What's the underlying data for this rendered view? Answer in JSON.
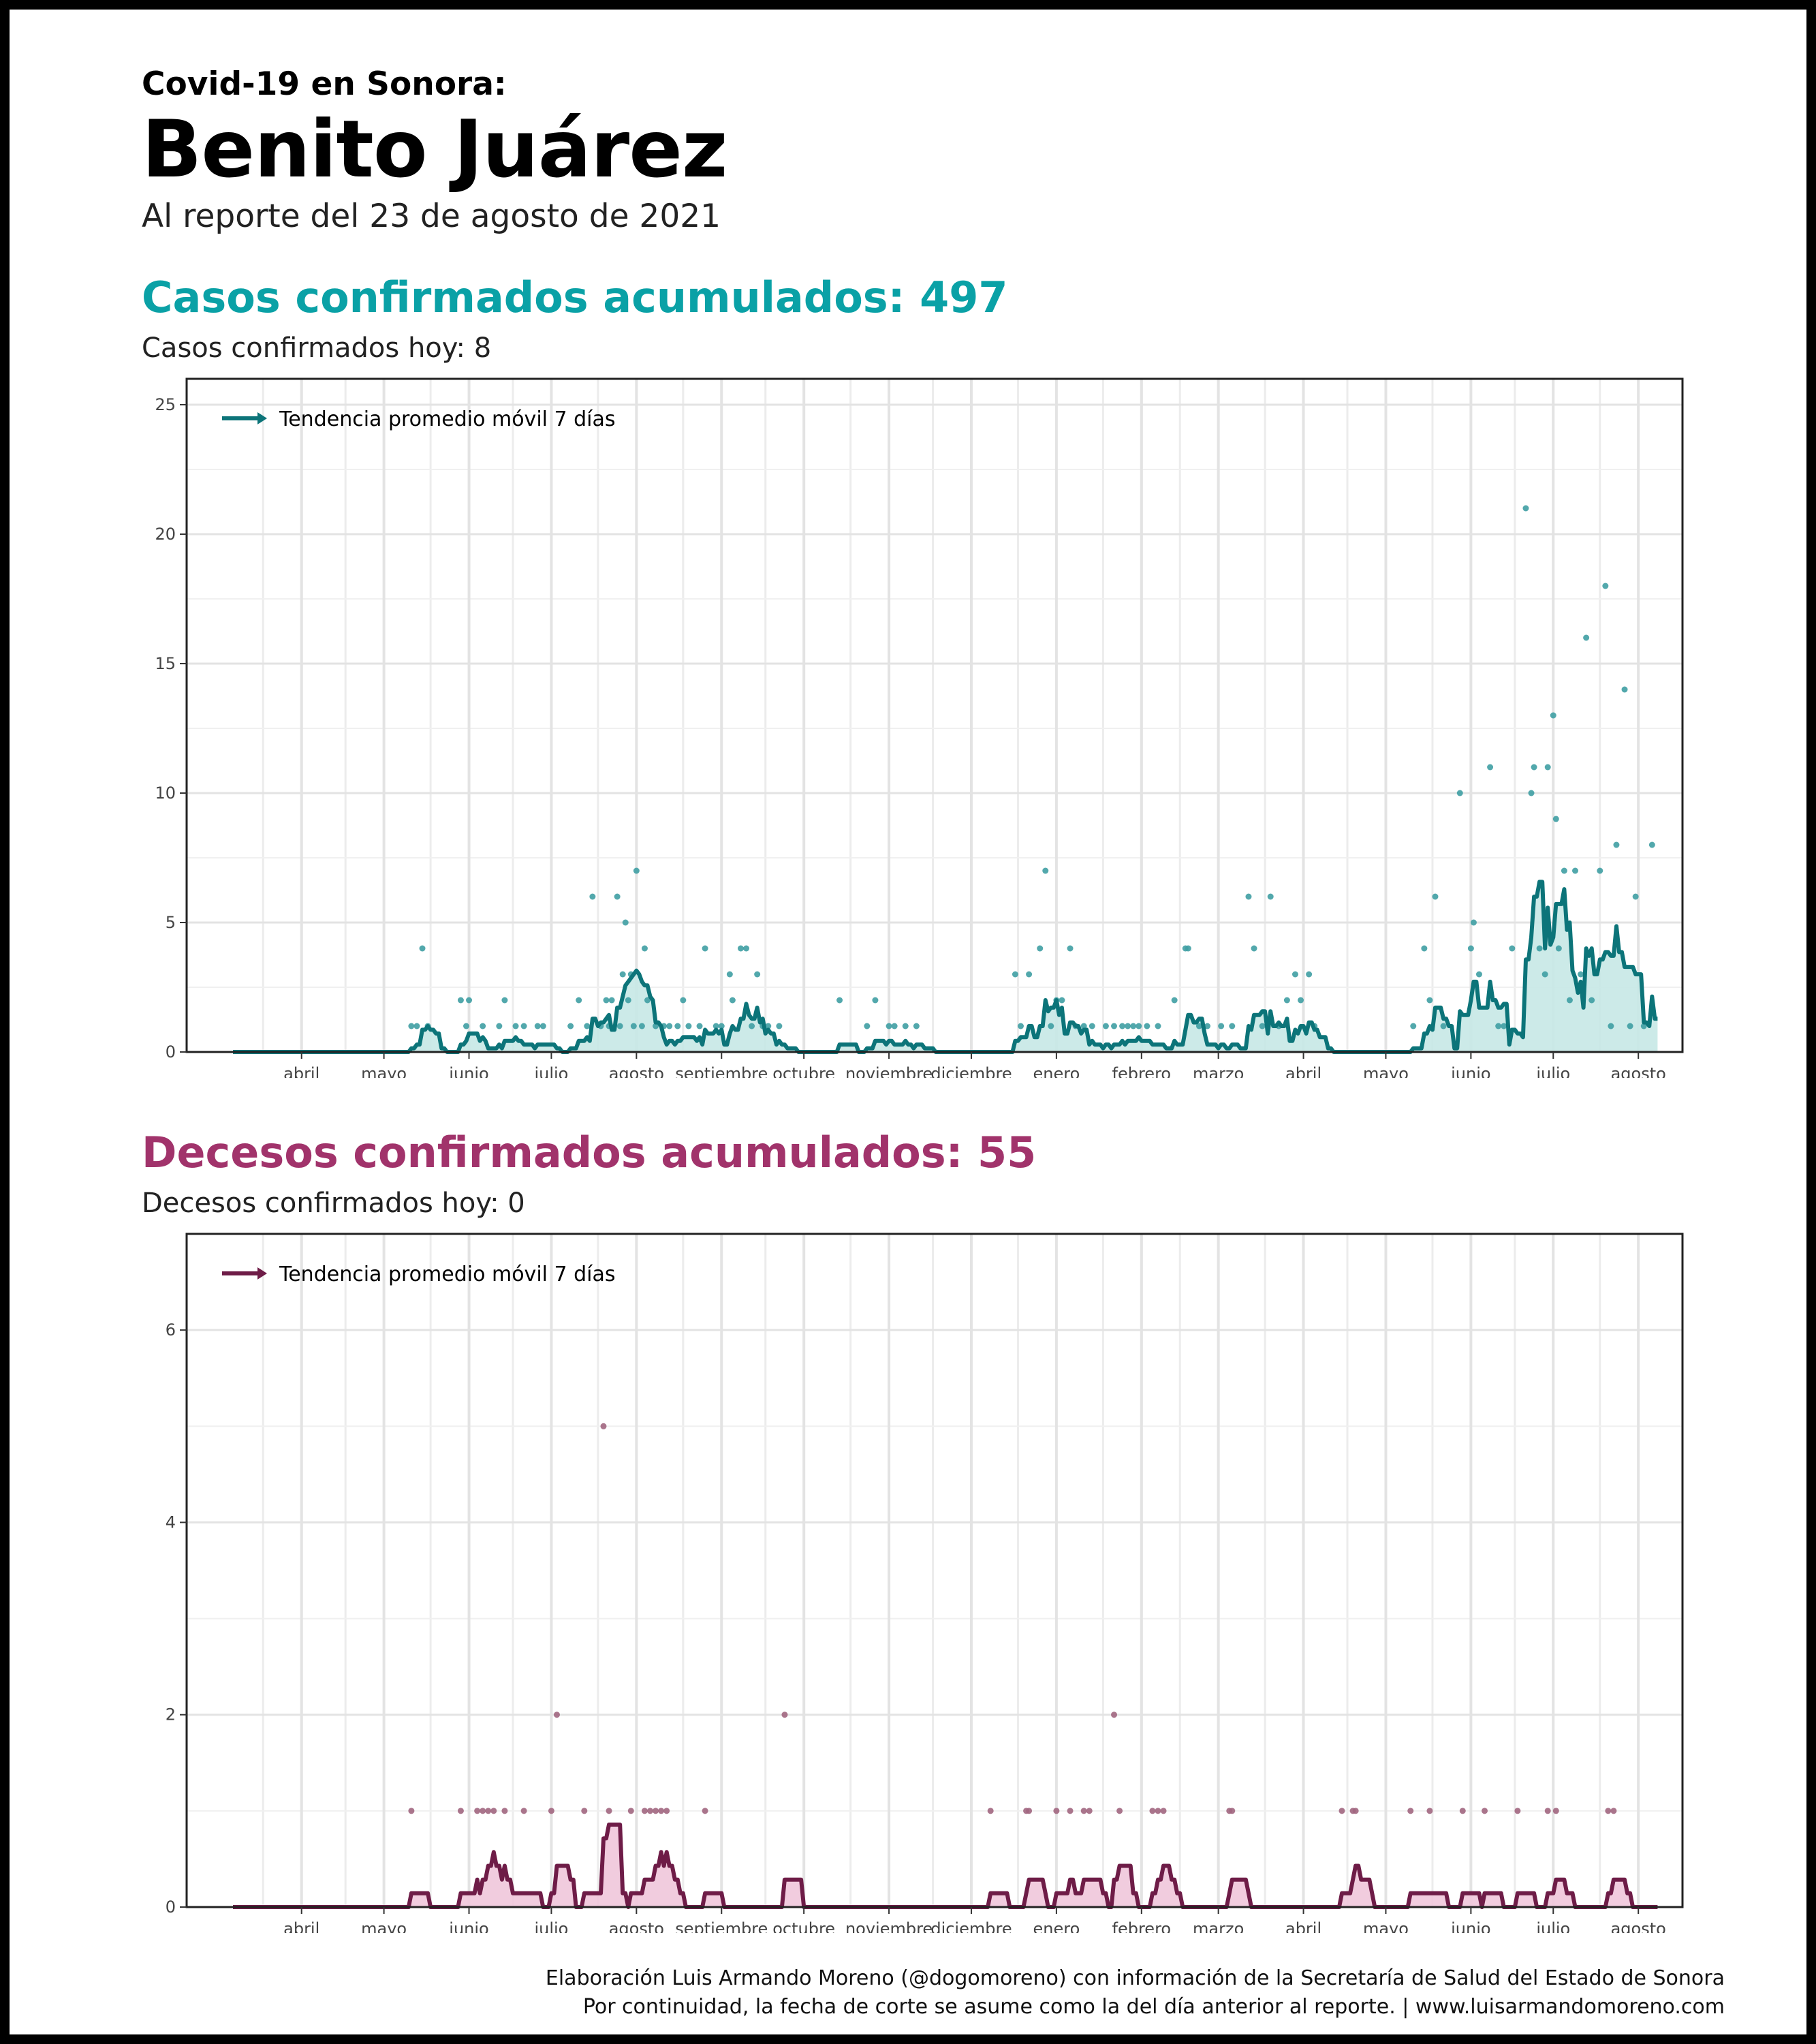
{
  "header": {
    "supertitle": "Covid-19 en Sonora:",
    "title": "Benito Juárez",
    "report_date": "Al reporte del 23 de agosto de 2021"
  },
  "cases": {
    "title": "Casos confirmados acumulados: 497",
    "today": "Casos confirmados hoy: 8",
    "accent": "#0aa1a6",
    "line_color": "#0c7479",
    "fill_color": "#c7e8e5",
    "dot_color": "#3f9ea3"
  },
  "deaths": {
    "title": "Decesos confirmados acumulados: 55",
    "today": "Decesos confirmados hoy: 0",
    "accent": "#a1336b",
    "line_color": "#6e1c47",
    "fill_color": "#f0c7da",
    "dot_color": "#a1667f"
  },
  "footer": {
    "line1": "Elaboración Luis Armando Moreno (@dogomoreno) con información de la Secretaría de Salud del Estado de Sonora",
    "line2": "Por continuidad, la fecha de corte se asume como la del día anterior al reporte. | www.luisarmandomoreno.com"
  },
  "chart_data": [
    {
      "type": "scatter",
      "legend": "Tendencia promedio móvil 7 días",
      "legend_position": "top-left",
      "x_start": "2020-03-21",
      "x_end": "2021-08-22",
      "x_ticks": [
        "abril",
        "mayo",
        "junio",
        "julio",
        "agosto",
        "septiembre",
        "octubre",
        "noviembre",
        "diciembre",
        "enero",
        "febrero",
        "marzo",
        "abril",
        "mayo",
        "junio",
        "julio",
        "agosto"
      ],
      "ylim": [
        0,
        26
      ],
      "y_ticks": [
        0,
        5,
        10,
        15,
        20,
        25
      ],
      "grid": true,
      "points": [
        {
          "x": "2020-05-25",
          "y": 1
        },
        {
          "x": "2020-05-27",
          "y": 1
        },
        {
          "x": "2020-05-29",
          "y": 4
        },
        {
          "x": "2020-05-31",
          "y": 1
        },
        {
          "x": "2020-06-12",
          "y": 2
        },
        {
          "x": "2020-06-14",
          "y": 1
        },
        {
          "x": "2020-06-15",
          "y": 2
        },
        {
          "x": "2020-06-20",
          "y": 1
        },
        {
          "x": "2020-06-26",
          "y": 1
        },
        {
          "x": "2020-06-28",
          "y": 2
        },
        {
          "x": "2020-07-02",
          "y": 1
        },
        {
          "x": "2020-07-05",
          "y": 1
        },
        {
          "x": "2020-07-10",
          "y": 1
        },
        {
          "x": "2020-07-12",
          "y": 1
        },
        {
          "x": "2020-07-22",
          "y": 1
        },
        {
          "x": "2020-07-25",
          "y": 2
        },
        {
          "x": "2020-07-28",
          "y": 1
        },
        {
          "x": "2020-07-30",
          "y": 6
        },
        {
          "x": "2020-08-02",
          "y": 1
        },
        {
          "x": "2020-08-04",
          "y": 2
        },
        {
          "x": "2020-08-05",
          "y": 1
        },
        {
          "x": "2020-08-06",
          "y": 2
        },
        {
          "x": "2020-08-08",
          "y": 6
        },
        {
          "x": "2020-08-09",
          "y": 1
        },
        {
          "x": "2020-08-10",
          "y": 3
        },
        {
          "x": "2020-08-11",
          "y": 5
        },
        {
          "x": "2020-08-12",
          "y": 2
        },
        {
          "x": "2020-08-13",
          "y": 3
        },
        {
          "x": "2020-08-14",
          "y": 1
        },
        {
          "x": "2020-08-15",
          "y": 7
        },
        {
          "x": "2020-08-17",
          "y": 1
        },
        {
          "x": "2020-08-18",
          "y": 4
        },
        {
          "x": "2020-08-19",
          "y": 2
        },
        {
          "x": "2020-08-22",
          "y": 1
        },
        {
          "x": "2020-08-25",
          "y": 1
        },
        {
          "x": "2020-08-27",
          "y": 1
        },
        {
          "x": "2020-08-30",
          "y": 1
        },
        {
          "x": "2020-09-01",
          "y": 2
        },
        {
          "x": "2020-09-03",
          "y": 1
        },
        {
          "x": "2020-09-07",
          "y": 1
        },
        {
          "x": "2020-09-09",
          "y": 4
        },
        {
          "x": "2020-09-13",
          "y": 1
        },
        {
          "x": "2020-09-15",
          "y": 1
        },
        {
          "x": "2020-09-18",
          "y": 3
        },
        {
          "x": "2020-09-19",
          "y": 2
        },
        {
          "x": "2020-09-22",
          "y": 4
        },
        {
          "x": "2020-09-24",
          "y": 4
        },
        {
          "x": "2020-09-26",
          "y": 1
        },
        {
          "x": "2020-09-28",
          "y": 3
        },
        {
          "x": "2020-09-30",
          "y": 1
        },
        {
          "x": "2020-10-02",
          "y": 1
        },
        {
          "x": "2020-10-06",
          "y": 1
        },
        {
          "x": "2020-10-28",
          "y": 2
        },
        {
          "x": "2020-11-07",
          "y": 1
        },
        {
          "x": "2020-11-10",
          "y": 2
        },
        {
          "x": "2020-11-15",
          "y": 1
        },
        {
          "x": "2020-11-17",
          "y": 1
        },
        {
          "x": "2020-11-21",
          "y": 1
        },
        {
          "x": "2020-11-25",
          "y": 1
        },
        {
          "x": "2020-12-31",
          "y": 3
        },
        {
          "x": "2021-01-02",
          "y": 1
        },
        {
          "x": "2021-01-05",
          "y": 3
        },
        {
          "x": "2021-01-09",
          "y": 4
        },
        {
          "x": "2021-01-11",
          "y": 7
        },
        {
          "x": "2021-01-13",
          "y": 1
        },
        {
          "x": "2021-01-15",
          "y": 2
        },
        {
          "x": "2021-01-17",
          "y": 2
        },
        {
          "x": "2021-01-20",
          "y": 4
        },
        {
          "x": "2021-01-22",
          "y": 1
        },
        {
          "x": "2021-01-25",
          "y": 1
        },
        {
          "x": "2021-01-28",
          "y": 1
        },
        {
          "x": "2021-02-02",
          "y": 1
        },
        {
          "x": "2021-02-05",
          "y": 1
        },
        {
          "x": "2021-02-08",
          "y": 1
        },
        {
          "x": "2021-02-10",
          "y": 1
        },
        {
          "x": "2021-02-12",
          "y": 1
        },
        {
          "x": "2021-02-14",
          "y": 1
        },
        {
          "x": "2021-02-17",
          "y": 1
        },
        {
          "x": "2021-02-21",
          "y": 1
        },
        {
          "x": "2021-02-27",
          "y": 2
        },
        {
          "x": "2021-03-03",
          "y": 4
        },
        {
          "x": "2021-03-04",
          "y": 4
        },
        {
          "x": "2021-03-08",
          "y": 1
        },
        {
          "x": "2021-03-11",
          "y": 1
        },
        {
          "x": "2021-03-16",
          "y": 1
        },
        {
          "x": "2021-03-20",
          "y": 1
        },
        {
          "x": "2021-03-26",
          "y": 6
        },
        {
          "x": "2021-03-28",
          "y": 4
        },
        {
          "x": "2021-03-31",
          "y": 1
        },
        {
          "x": "2021-04-03",
          "y": 6
        },
        {
          "x": "2021-04-06",
          "y": 1
        },
        {
          "x": "2021-04-09",
          "y": 2
        },
        {
          "x": "2021-04-12",
          "y": 3
        },
        {
          "x": "2021-04-14",
          "y": 2
        },
        {
          "x": "2021-04-17",
          "y": 3
        },
        {
          "x": "2021-04-19",
          "y": 1
        },
        {
          "x": "2021-05-25",
          "y": 1
        },
        {
          "x": "2021-05-29",
          "y": 4
        },
        {
          "x": "2021-05-31",
          "y": 2
        },
        {
          "x": "2021-06-02",
          "y": 6
        },
        {
          "x": "2021-06-05",
          "y": 1
        },
        {
          "x": "2021-06-11",
          "y": 10
        },
        {
          "x": "2021-06-15",
          "y": 4
        },
        {
          "x": "2021-06-16",
          "y": 5
        },
        {
          "x": "2021-06-18",
          "y": 3
        },
        {
          "x": "2021-06-22",
          "y": 11
        },
        {
          "x": "2021-06-25",
          "y": 1
        },
        {
          "x": "2021-06-27",
          "y": 1
        },
        {
          "x": "2021-06-30",
          "y": 4
        },
        {
          "x": "2021-07-05",
          "y": 21
        },
        {
          "x": "2021-07-07",
          "y": 10
        },
        {
          "x": "2021-07-08",
          "y": 11
        },
        {
          "x": "2021-07-10",
          "y": 4
        },
        {
          "x": "2021-07-12",
          "y": 3
        },
        {
          "x": "2021-07-13",
          "y": 11
        },
        {
          "x": "2021-07-15",
          "y": 13
        },
        {
          "x": "2021-07-16",
          "y": 9
        },
        {
          "x": "2021-07-17",
          "y": 4
        },
        {
          "x": "2021-07-19",
          "y": 7
        },
        {
          "x": "2021-07-21",
          "y": 2
        },
        {
          "x": "2021-07-23",
          "y": 7
        },
        {
          "x": "2021-07-25",
          "y": 3
        },
        {
          "x": "2021-07-27",
          "y": 16
        },
        {
          "x": "2021-07-29",
          "y": 2
        },
        {
          "x": "2021-08-01",
          "y": 7
        },
        {
          "x": "2021-08-03",
          "y": 18
        },
        {
          "x": "2021-08-05",
          "y": 1
        },
        {
          "x": "2021-08-07",
          "y": 8
        },
        {
          "x": "2021-08-10",
          "y": 14
        },
        {
          "x": "2021-08-12",
          "y": 1
        },
        {
          "x": "2021-08-14",
          "y": 6
        },
        {
          "x": "2021-08-17",
          "y": 1
        },
        {
          "x": "2021-08-20",
          "y": 8
        }
      ]
    },
    {
      "type": "scatter",
      "legend": "Tendencia promedio móvil 7 días",
      "legend_position": "top-left",
      "x_start": "2020-03-21",
      "x_end": "2021-08-22",
      "x_ticks": [
        "abril",
        "mayo",
        "junio",
        "julio",
        "agosto",
        "septiembre",
        "octubre",
        "noviembre",
        "diciembre",
        "enero",
        "febrero",
        "marzo",
        "abril",
        "mayo",
        "junio",
        "julio",
        "agosto"
      ],
      "ylim": [
        0,
        7
      ],
      "y_ticks": [
        0,
        2,
        4,
        6
      ],
      "grid": true,
      "points": [
        {
          "x": "2020-05-25",
          "y": 1
        },
        {
          "x": "2020-06-12",
          "y": 1
        },
        {
          "x": "2020-06-18",
          "y": 1
        },
        {
          "x": "2020-06-20",
          "y": 1
        },
        {
          "x": "2020-06-22",
          "y": 1
        },
        {
          "x": "2020-06-24",
          "y": 1
        },
        {
          "x": "2020-06-28",
          "y": 1
        },
        {
          "x": "2020-07-05",
          "y": 1
        },
        {
          "x": "2020-07-15",
          "y": 1
        },
        {
          "x": "2020-07-17",
          "y": 2
        },
        {
          "x": "2020-07-27",
          "y": 1
        },
        {
          "x": "2020-08-03",
          "y": 5
        },
        {
          "x": "2020-08-05",
          "y": 1
        },
        {
          "x": "2020-08-13",
          "y": 1
        },
        {
          "x": "2020-08-18",
          "y": 1
        },
        {
          "x": "2020-08-20",
          "y": 1
        },
        {
          "x": "2020-08-22",
          "y": 1
        },
        {
          "x": "2020-08-24",
          "y": 1
        },
        {
          "x": "2020-08-26",
          "y": 1
        },
        {
          "x": "2020-09-09",
          "y": 1
        },
        {
          "x": "2020-10-08",
          "y": 2
        },
        {
          "x": "2020-12-22",
          "y": 1
        },
        {
          "x": "2021-01-04",
          "y": 1
        },
        {
          "x": "2021-01-05",
          "y": 1
        },
        {
          "x": "2021-01-15",
          "y": 1
        },
        {
          "x": "2021-01-20",
          "y": 1
        },
        {
          "x": "2021-01-25",
          "y": 1
        },
        {
          "x": "2021-01-27",
          "y": 1
        },
        {
          "x": "2021-02-05",
          "y": 2
        },
        {
          "x": "2021-02-07",
          "y": 1
        },
        {
          "x": "2021-02-19",
          "y": 1
        },
        {
          "x": "2021-02-21",
          "y": 1
        },
        {
          "x": "2021-02-23",
          "y": 1
        },
        {
          "x": "2021-03-19",
          "y": 1
        },
        {
          "x": "2021-03-20",
          "y": 1
        },
        {
          "x": "2021-04-29",
          "y": 1
        },
        {
          "x": "2021-05-03",
          "y": 1
        },
        {
          "x": "2021-05-04",
          "y": 1
        },
        {
          "x": "2021-05-24",
          "y": 1
        },
        {
          "x": "2021-05-31",
          "y": 1
        },
        {
          "x": "2021-06-12",
          "y": 1
        },
        {
          "x": "2021-06-20",
          "y": 1
        },
        {
          "x": "2021-07-02",
          "y": 1
        },
        {
          "x": "2021-07-13",
          "y": 1
        },
        {
          "x": "2021-07-16",
          "y": 1
        },
        {
          "x": "2021-08-04",
          "y": 1
        },
        {
          "x": "2021-08-06",
          "y": 1
        }
      ]
    }
  ]
}
